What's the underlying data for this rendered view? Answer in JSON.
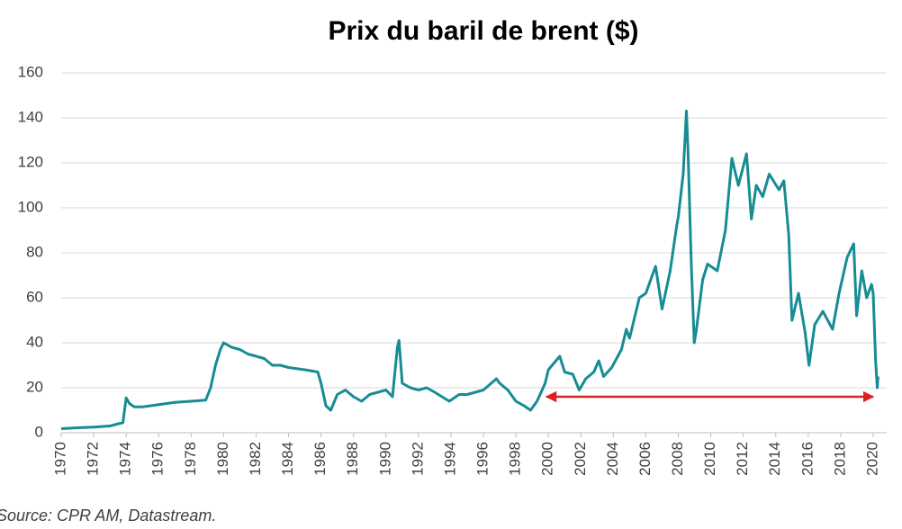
{
  "chart_data": {
    "type": "line",
    "title": "Prix du baril de brent ($)",
    "source": "Source: CPR AM, Datastream.",
    "x": [
      1970,
      1971,
      1972,
      1973,
      1973.8,
      1974.0,
      1974.2,
      1974.5,
      1975,
      1976,
      1977,
      1978,
      1978.9,
      1979.2,
      1979.5,
      1979.8,
      1980,
      1980.5,
      1981,
      1981.5,
      1982,
      1982.5,
      1983,
      1983.5,
      1984,
      1985,
      1985.8,
      1986.0,
      1986.3,
      1986.6,
      1987,
      1987.5,
      1988,
      1988.5,
      1989,
      1989.5,
      1990,
      1990.4,
      1990.7,
      1990.8,
      1991,
      1991.5,
      1992,
      1992.5,
      1993,
      1993.9,
      1994.5,
      1995,
      1996,
      1996.8,
      1997,
      1997.5,
      1998,
      1998.5,
      1998.9,
      1999.3,
      1999.8,
      2000,
      2000.7,
      2001,
      2001.5,
      2001.9,
      2002.3,
      2002.8,
      2003.1,
      2003.4,
      2003.9,
      2004.5,
      2004.8,
      2005,
      2005.6,
      2006,
      2006.6,
      2007,
      2007.5,
      2007.9,
      2008,
      2008.3,
      2008.5,
      2008.6,
      2008.8,
      2008.98,
      2009.1,
      2009.5,
      2009.8,
      2010.4,
      2010.9,
      2011.3,
      2011.7,
      2012.2,
      2012.5,
      2012.8,
      2013.2,
      2013.6,
      2014.2,
      2014.5,
      2014.8,
      2015,
      2015.4,
      2015.8,
      2016.05,
      2016.4,
      2016.9,
      2017.5,
      2017.9,
      2018.4,
      2018.8,
      2018.98,
      2019.3,
      2019.6,
      2019.9,
      2020.0,
      2020.15,
      2020.25,
      2020.3
    ],
    "series": [
      {
        "color": "#178c94",
        "values": [
          1.8,
          2.2,
          2.5,
          3,
          4.5,
          15.5,
          13,
          11.5,
          11.5,
          12.5,
          13.5,
          14,
          14.5,
          20,
          30,
          37,
          40,
          38,
          37,
          35,
          34,
          33,
          30,
          30,
          29,
          28,
          27,
          22,
          12,
          10,
          17,
          19,
          16,
          14,
          17,
          18,
          19,
          16,
          38,
          41,
          22,
          20,
          19,
          20,
          18,
          14,
          17,
          17,
          19,
          24,
          22,
          19,
          14,
          12,
          10,
          14,
          22,
          28,
          34,
          27,
          26,
          19,
          24,
          27,
          32,
          25,
          29,
          37,
          46,
          42,
          60,
          62,
          74,
          55,
          72,
          92,
          96,
          115,
          143,
          125,
          75,
          40,
          45,
          68,
          75,
          72,
          90,
          122,
          110,
          124,
          95,
          110,
          105,
          115,
          108,
          112,
          88,
          50,
          62,
          45,
          30,
          48,
          54,
          46,
          62,
          78,
          84,
          52,
          72,
          60,
          66,
          62,
          32,
          20,
          25
        ]
      }
    ],
    "xlim": [
      1970,
      2020.5
    ],
    "xticks": [
      1970,
      1972,
      1974,
      1976,
      1978,
      1980,
      1982,
      1984,
      1986,
      1988,
      1990,
      1992,
      1994,
      1996,
      1998,
      2000,
      2002,
      2004,
      2006,
      2008,
      2010,
      2012,
      2014,
      2016,
      2018,
      2020
    ],
    "ylim": [
      0,
      160
    ],
    "yticks": [
      0,
      20,
      40,
      60,
      80,
      100,
      120,
      140,
      160
    ],
    "grid": true
  }
}
